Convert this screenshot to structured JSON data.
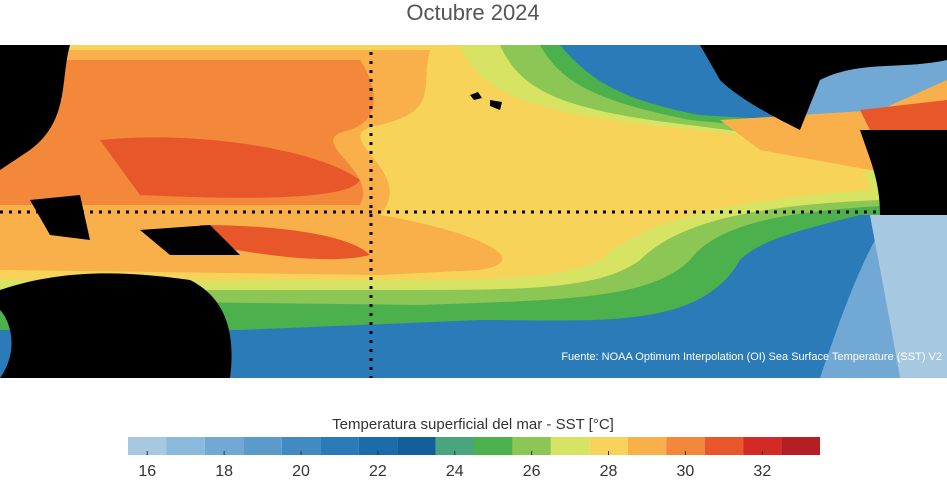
{
  "title": "Octubre 2024",
  "source": "Fuente: NOAA Optimum Interpolation (OI) Sea Surface Temperature (SST) V2",
  "colorbar": {
    "label": "Temperatura superficial del mar - SST  [°C]",
    "lim": [
      15.5,
      33.5
    ],
    "bins": [
      15.5,
      16.5,
      17.5,
      18.5,
      19.5,
      20.5,
      21.5,
      22.5,
      23.5,
      24.5,
      25.5,
      26.5,
      27.5,
      28.5,
      29.5,
      30.5,
      31.5,
      32.5,
      33.5
    ],
    "colors": [
      "#a6c8e0",
      "#8bb9dc",
      "#72a9d4",
      "#5a9bcc",
      "#438ac2",
      "#2b7bb8",
      "#1a6aac",
      "#145f9a",
      "#4aa57e",
      "#4cb04c",
      "#8cc654",
      "#d7e463",
      "#f8d35a",
      "#f9b04a",
      "#f3883a",
      "#e8572a",
      "#d42a25",
      "#b41f23"
    ],
    "ticks": [
      16,
      18,
      20,
      22,
      24,
      26,
      28,
      30,
      32
    ]
  }
}
